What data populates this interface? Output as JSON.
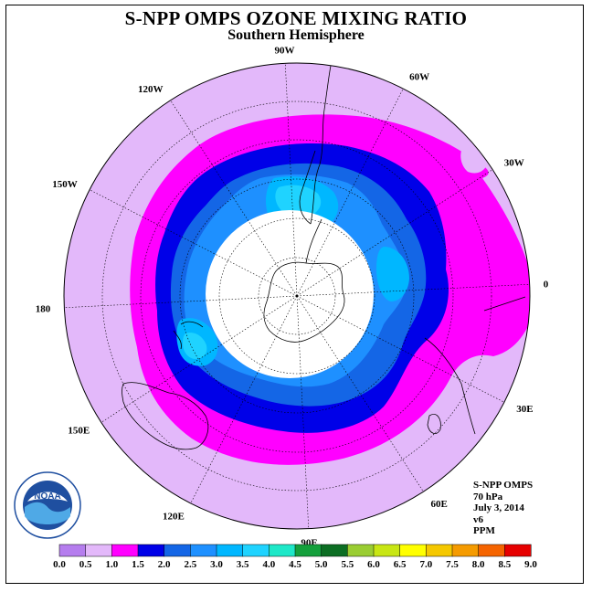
{
  "title": "S-NPP OMPS OZONE MIXING RATIO",
  "subtitle": "Southern Hemisphere",
  "longitude_labels": [
    {
      "text": "90W",
      "lon": -90
    },
    {
      "text": "60W",
      "lon": -60
    },
    {
      "text": "30W",
      "lon": -30
    },
    {
      "text": "0",
      "lon": 0
    },
    {
      "text": "30E",
      "lon": 30
    },
    {
      "text": "60E",
      "lon": 60
    },
    {
      "text": "90E",
      "lon": 90
    },
    {
      "text": "120E",
      "lon": 120
    },
    {
      "text": "150E",
      "lon": 150
    },
    {
      "text": "180",
      "lon": 180
    },
    {
      "text": "150W",
      "lon": -150
    },
    {
      "text": "120W",
      "lon": -120
    }
  ],
  "info": {
    "instrument": "S-NPP OMPS",
    "level": "70 hPa",
    "date": "July 3, 2014",
    "version": "v6",
    "units": "PPM"
  },
  "logo_text": "NOAA",
  "colorbar": {
    "ticks": [
      "0.0",
      "0.5",
      "1.0",
      "1.5",
      "2.0",
      "2.5",
      "3.0",
      "3.5",
      "4.0",
      "4.5",
      "5.0",
      "5.5",
      "6.0",
      "6.5",
      "7.0",
      "7.5",
      "8.0",
      "8.5",
      "9.0"
    ],
    "colors": [
      "#b57dee",
      "#e3b8fa",
      "#ff00ff",
      "#0000e8",
      "#1466e6",
      "#1e90ff",
      "#00b7ff",
      "#1fd3ff",
      "#1ee8c8",
      "#14a03c",
      "#0c6e23",
      "#9acd32",
      "#c8e614",
      "#ffff00",
      "#f5c800",
      "#f59b00",
      "#f56400",
      "#e60000",
      "#8b5a2b"
    ]
  },
  "map_colors": {
    "level_0_5": "#e3b8fa",
    "level_1_0": "#ff00ff",
    "level_1_5": "#0000e8",
    "level_2_0": "#1466e6",
    "level_2_5": "#1e90ff",
    "level_3_0": "#00b7ff",
    "level_3_5": "#1fd3ff",
    "no_data": "#ffffff"
  }
}
